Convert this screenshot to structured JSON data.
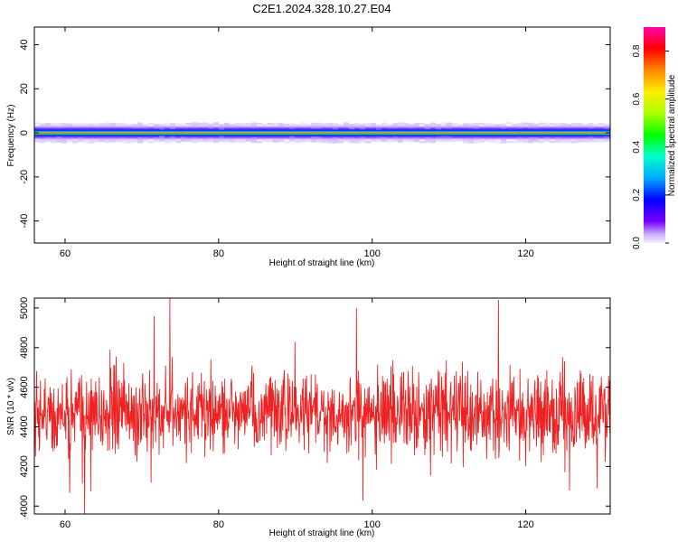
{
  "title": "C2E1.2024.328.10.27.E04",
  "chart_data": [
    {
      "type": "heatmap",
      "xlabel": "Height of straight line (km)",
      "ylabel": "Frequency (Hz)",
      "xlim": [
        56,
        131
      ],
      "ylim": [
        -50,
        48
      ],
      "xticks": [
        60,
        80,
        100,
        120
      ],
      "yticks": [
        40,
        20,
        0,
        -20,
        -40
      ],
      "band_center_hz": 0,
      "band_halfwidth_hz": 4,
      "colorbar": {
        "label": "Normalized spectral amplitude",
        "range": [
          0,
          0.9
        ],
        "ticks": [
          "0.0",
          "0.2",
          "0.4",
          "0.6",
          "0.8"
        ]
      }
    },
    {
      "type": "line",
      "xlabel": "Height of straight line (km)",
      "ylabel": "SNR (10 * v/v)",
      "xlim": [
        56,
        131
      ],
      "ylim": [
        3960,
        5050
      ],
      "xticks": [
        60,
        80,
        100,
        120
      ],
      "yticks": [
        4000,
        4200,
        4400,
        4600,
        4800,
        5000
      ],
      "series_color": "#ee2222",
      "mean": 4470,
      "spread": 130,
      "x_step_km": 0.05
    }
  ]
}
